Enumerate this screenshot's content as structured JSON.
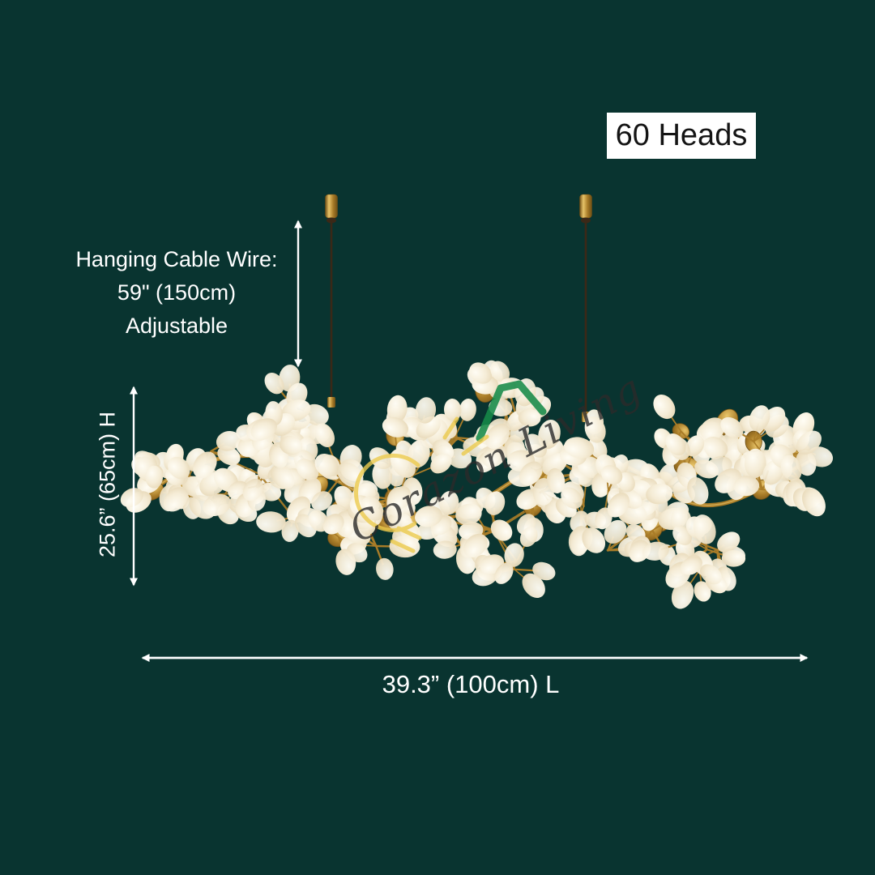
{
  "badge": {
    "label": "60 Heads"
  },
  "dimensions": {
    "cable": {
      "line1": "Hanging Cable Wire:",
      "line2": "59\" (150cm)",
      "line3": "Adjustable"
    },
    "height": "25.6” (65cm) H",
    "length": "39.3” (100cm) L"
  },
  "watermark": {
    "text": "Corazon Living"
  },
  "colors": {
    "background": "#093430",
    "label_text": "#ffffff",
    "badge_bg": "#ffffff",
    "badge_text": "#141414",
    "arrow": "#ffffff",
    "gold": "#a97c28",
    "gold_light": "#e8c469",
    "gold_dark": "#6f4f15",
    "bulb_core": "#fffdf5",
    "bulb_mid": "#f5ecd6",
    "bulb_edge": "#e3d2ae",
    "cable": "#3b2817",
    "watermark_text": "#2b2b2b",
    "watermark_green": "#168a48",
    "watermark_yellow": "#eccb4e"
  }
}
